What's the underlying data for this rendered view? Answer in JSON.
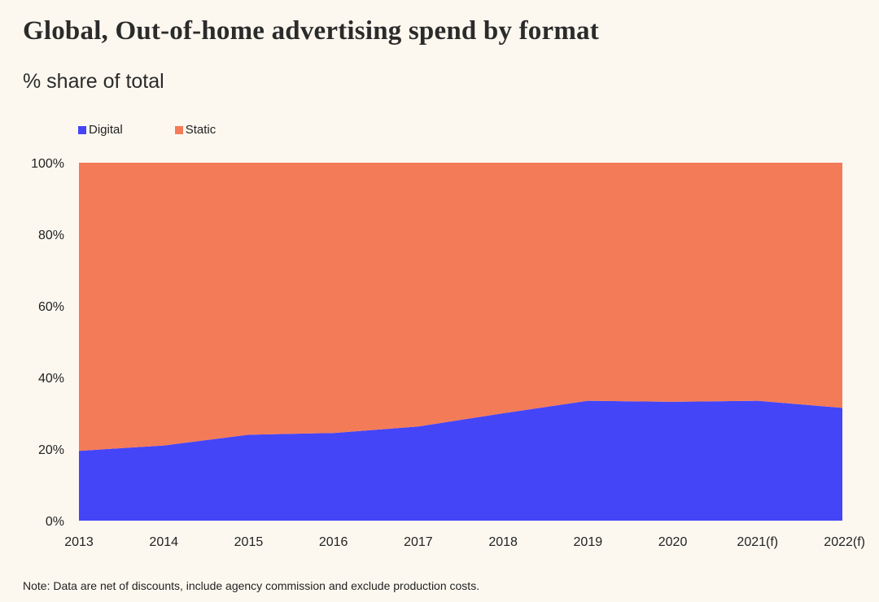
{
  "title": "Global, Out-of-home advertising spend by format",
  "subtitle": "% share of total",
  "note": "Note: Data are net of discounts, include agency commission and exclude production costs.",
  "colors": {
    "digital": "#4545f8",
    "static": "#f47b58",
    "background": "#fcf8ef"
  },
  "chart_data": {
    "type": "area",
    "stacked": true,
    "title": "Global, Out-of-home advertising spend by format",
    "subtitle": "% share of total",
    "x": [
      "2013",
      "2014",
      "2015",
      "2016",
      "2017",
      "2018",
      "2019",
      "2020",
      "2021(f)",
      "2022(f)"
    ],
    "series": [
      {
        "name": "Digital",
        "color": "#4545f8",
        "values": [
          19.5,
          21,
          24,
          24.5,
          26.3,
          30,
          33.5,
          33.2,
          33.5,
          31.5
        ]
      },
      {
        "name": "Static",
        "color": "#f47b58",
        "values": [
          80.5,
          79,
          76,
          75.5,
          73.7,
          70,
          66.5,
          66.8,
          66.5,
          68.5
        ]
      }
    ],
    "ylim": [
      0,
      100
    ],
    "yticks": [
      "0%",
      "20%",
      "40%",
      "60%",
      "80%",
      "100%"
    ],
    "legend": "top-left",
    "grid": false
  }
}
